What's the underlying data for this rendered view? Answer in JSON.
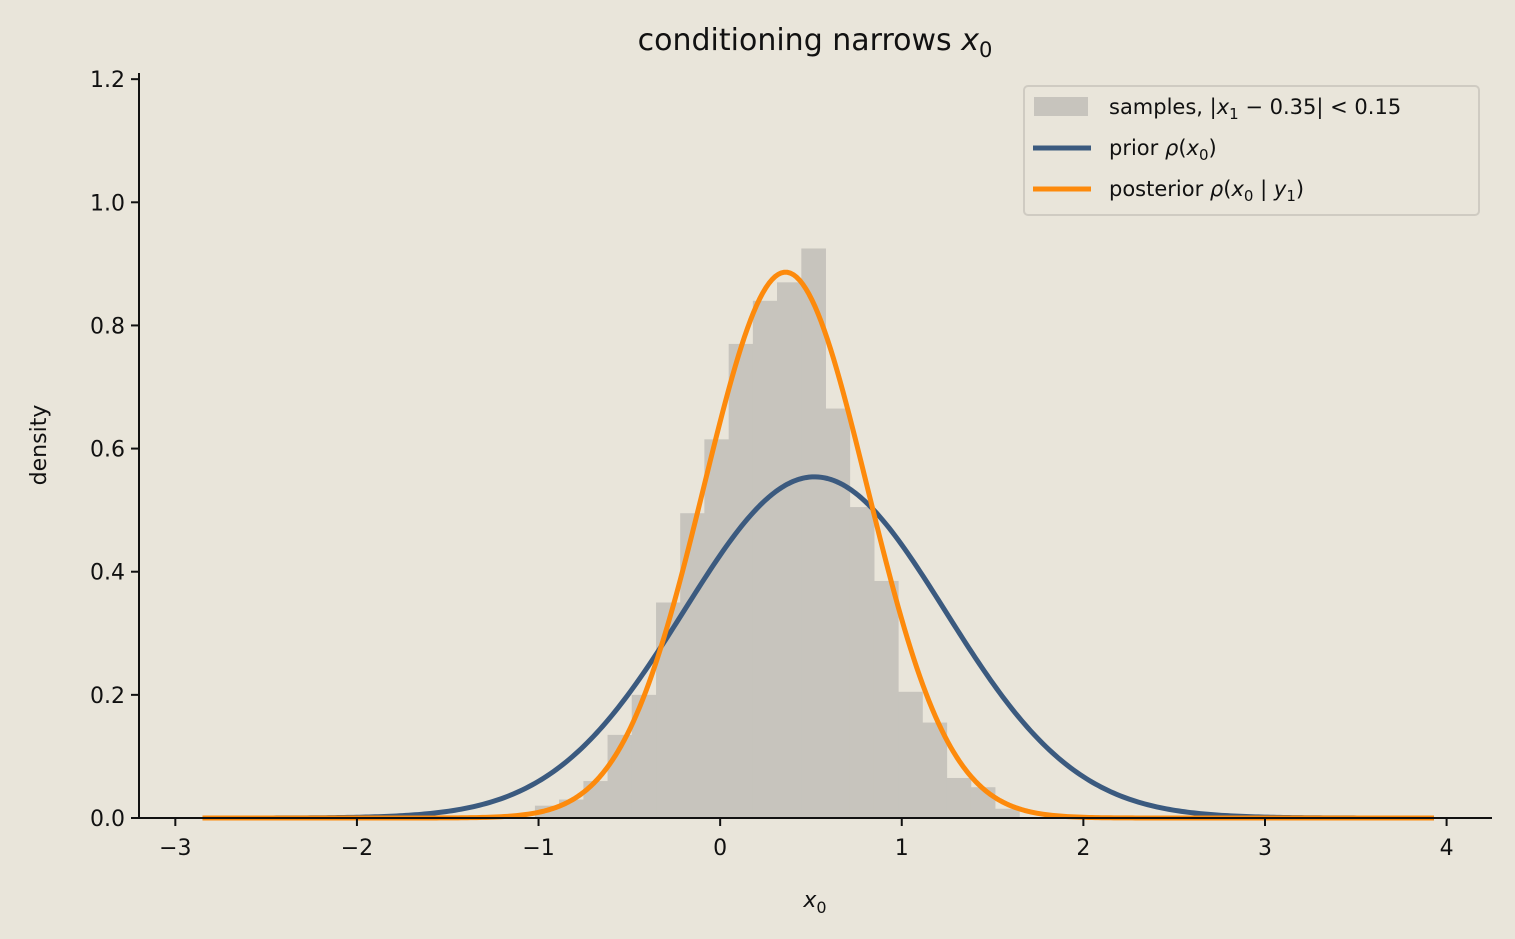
{
  "chart_data": {
    "type": "histogram+line",
    "title": "conditioning narrows x0",
    "title_plain": "conditioning narrows ",
    "title_var": "x",
    "title_sub": "0",
    "xlabel_var": "x",
    "xlabel_sub": "0",
    "ylabel": "density",
    "xlim": [
      -3.2,
      4.25
    ],
    "ylim": [
      0,
      1.21
    ],
    "xticks": [
      -3,
      -2,
      -1,
      0,
      1,
      2,
      3,
      4
    ],
    "xtick_labels": [
      "−3",
      "−2",
      "−1",
      "0",
      "1",
      "2",
      "3",
      "4"
    ],
    "yticks": [
      0.0,
      0.2,
      0.4,
      0.6,
      0.8,
      1.0,
      1.2
    ],
    "ytick_labels": [
      "0.0",
      "0.2",
      "0.4",
      "0.6",
      "0.8",
      "1.0",
      "1.2"
    ],
    "grid": false,
    "legend_position": "top-right",
    "histogram": {
      "name": "samples, |x1 − 0.35| < 0.15",
      "color": "#c7c4bd",
      "bin_edges": [
        -1.02,
        -0.887,
        -0.753,
        -0.62,
        -0.487,
        -0.353,
        -0.22,
        -0.087,
        0.047,
        0.18,
        0.313,
        0.447,
        0.58,
        0.713,
        0.847,
        0.98,
        1.113,
        1.247,
        1.38,
        1.513,
        1.647
      ],
      "values": [
        0.02,
        0.03,
        0.06,
        0.135,
        0.2,
        0.35,
        0.495,
        0.615,
        0.77,
        0.84,
        0.87,
        0.925,
        0.665,
        0.505,
        0.385,
        0.205,
        0.155,
        0.065,
        0.05,
        0.015
      ]
    },
    "series": [
      {
        "name": "prior ρ(x0)",
        "color": "#3b5a7f",
        "type": "line",
        "distribution": "normal",
        "mean": 0.52,
        "sd": 0.72,
        "x_range": [
          -2.85,
          3.93
        ]
      },
      {
        "name": "posterior ρ(x0 | y1)",
        "color": "#fd8a0c",
        "type": "line",
        "distribution": "normal",
        "mean": 0.36,
        "sd": 0.45,
        "x_range": [
          -2.85,
          3.93
        ]
      }
    ]
  }
}
